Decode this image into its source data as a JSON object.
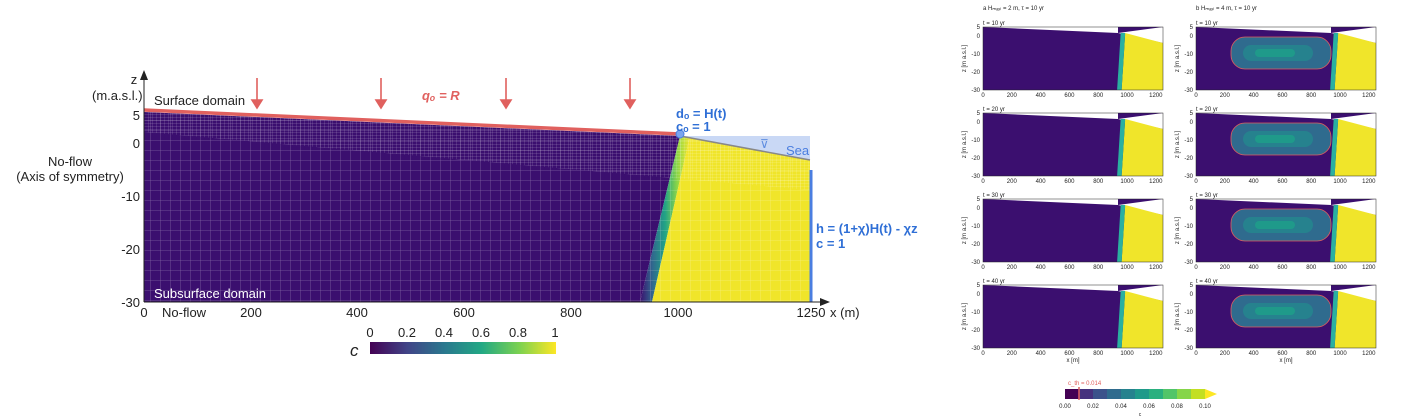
{
  "main_figure": {
    "axis_z": {
      "label_top": "z",
      "label_unit": "(m.a.s.l.)",
      "ticks": [
        "5",
        "0",
        "-10",
        "-20",
        "-30"
      ]
    },
    "axis_x": {
      "label": "x (m)",
      "ticks": [
        "0",
        "200",
        "400",
        "600",
        "800",
        "1000",
        "1250"
      ]
    },
    "labels": {
      "surface_domain": "Surface domain",
      "subsurface_domain": "Subsurface domain",
      "no_flow_left": "No-flow",
      "axis_symmetry": "(Axis of symmetry)",
      "no_flow_bottom": "No-flow",
      "flux": "qₒ = R",
      "d0": "dₒ = H(t)",
      "c0": "cₒ = 1",
      "sea": "Sea",
      "head_bc": "h = (1+χ)H(t) - χz",
      "c_bc": "c = 1",
      "water_symbol": "⊽"
    },
    "colorbar": {
      "label": "c",
      "ticks": [
        "0",
        "0.2",
        "0.4",
        "0.6",
        "0.8",
        "1"
      ]
    },
    "colors": {
      "fresh": "#3b0f6f",
      "saline": "#f0e52a",
      "surface_line": "#e0605e",
      "boundary_blue": "#4a7ee0"
    }
  },
  "small_panels": {
    "column_a_title": "a  Hₘₐₓₗ = 2 m, τ = 10 yr",
    "column_b_title": "b  Hₘₐₓₗ = 4 m, τ = 10 yr",
    "rows": [
      {
        "time": "t = 10 yr"
      },
      {
        "time": "t = 20 yr"
      },
      {
        "time": "t = 30 yr"
      },
      {
        "time": "t = 40 yr"
      }
    ],
    "ylabel": "z [m a.s.l.]",
    "xlabel": "x [m]",
    "yticks": [
      "5",
      "0",
      "-10",
      "-20",
      "-30"
    ],
    "xticks": [
      "0",
      "200",
      "400",
      "600",
      "800",
      "1000",
      "1200"
    ],
    "colorbar": {
      "threshold_label": "c_th = 0.014",
      "ticks": [
        "0.00",
        "0.02",
        "0.04",
        "0.06",
        "0.08",
        "0.10"
      ],
      "label": "c"
    }
  }
}
